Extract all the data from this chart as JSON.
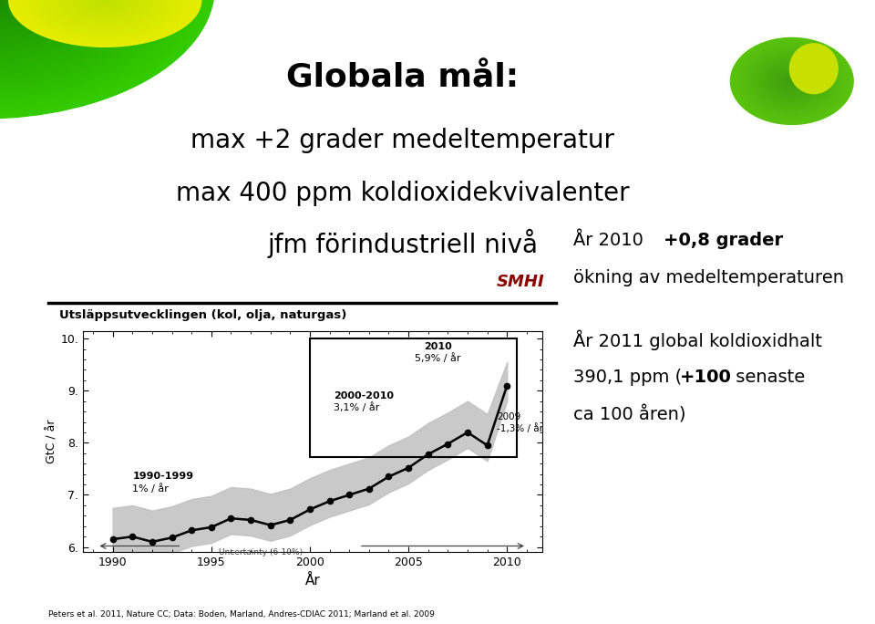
{
  "title_bold": "Globala mål:",
  "subtitle_lines": [
    "max +2 grader medeltemperatur",
    "max 400 ppm koldioxidekvivalenter",
    "jfm förindustriell nivå"
  ],
  "smhi_label": "SMHI",
  "chart_title": "Utsläppsutvecklingen (kol, olja, naturgas)",
  "xlabel": "År",
  "ylabel": "GtC / år",
  "footnote": "Peters et al. 2011, Nature CC; Data: Boden, Marland, Andres-CDIAC 2011; Marland et al. 2009",
  "bg_color": "#ffffff",
  "line_color": "#000000",
  "fill_color": "#bbbbbb",
  "chart_x_years": [
    1990,
    1991,
    1992,
    1993,
    1994,
    1995,
    1996,
    1997,
    1998,
    1999,
    2000,
    2001,
    2002,
    2003,
    2004,
    2005,
    2006,
    2007,
    2008,
    2009,
    2010
  ],
  "chart_y_values": [
    6.15,
    6.2,
    6.1,
    6.18,
    6.32,
    6.38,
    6.55,
    6.52,
    6.42,
    6.52,
    6.72,
    6.88,
    7.0,
    7.12,
    7.35,
    7.52,
    7.78,
    7.98,
    8.2,
    7.95,
    9.1
  ],
  "chart_y_upper": [
    6.75,
    6.8,
    6.7,
    6.78,
    6.92,
    6.98,
    7.15,
    7.12,
    7.02,
    7.12,
    7.32,
    7.48,
    7.6,
    7.72,
    7.95,
    8.12,
    8.38,
    8.58,
    8.8,
    8.55,
    9.55
  ],
  "chart_y_lower": [
    5.85,
    5.9,
    5.8,
    5.88,
    6.02,
    6.08,
    6.25,
    6.22,
    6.12,
    6.22,
    6.42,
    6.58,
    6.7,
    6.82,
    7.05,
    7.22,
    7.48,
    7.68,
    7.9,
    7.65,
    8.8
  ],
  "ylim": [
    5.9,
    10.15
  ],
  "xlim": [
    1988.5,
    2011.8
  ],
  "yticks": [
    6.0,
    7.0,
    8.0,
    9.0,
    10.0
  ],
  "xticks": [
    1990,
    1995,
    2000,
    2005,
    2010
  ]
}
